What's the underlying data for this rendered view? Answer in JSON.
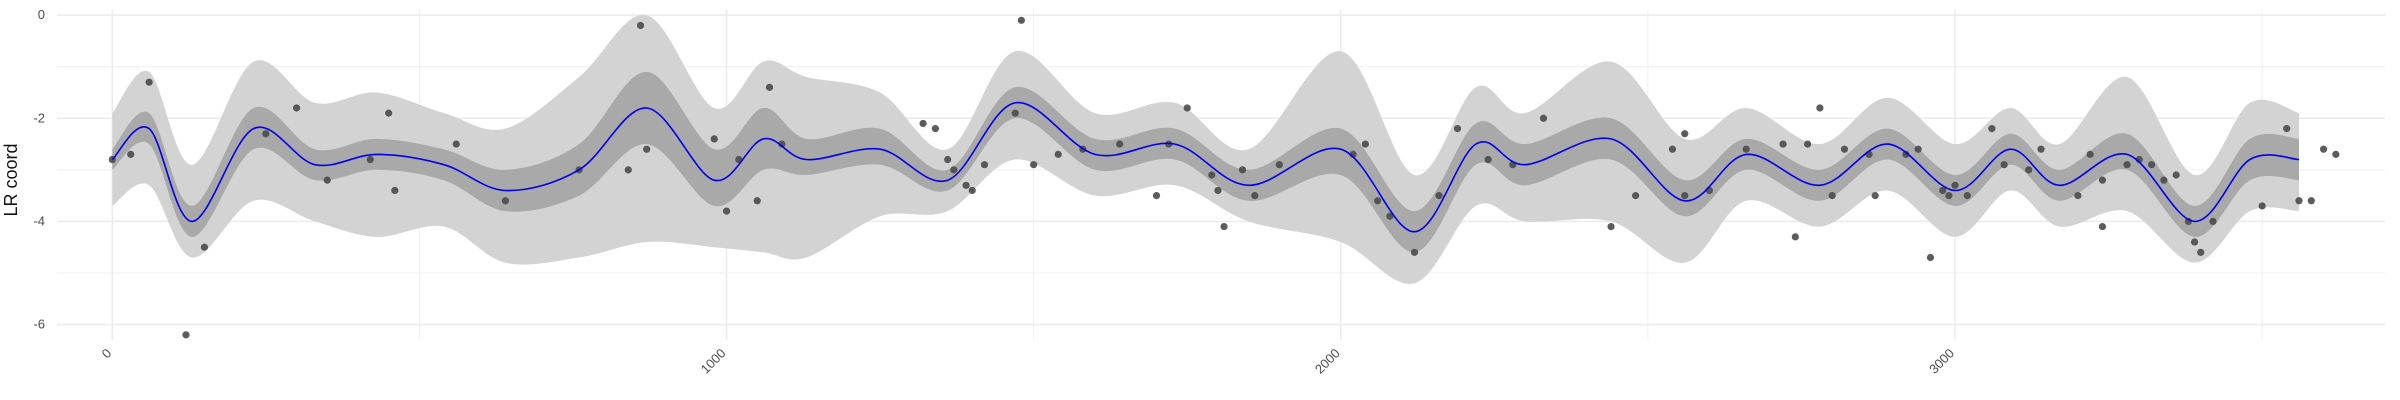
{
  "chart_data": {
    "type": "line",
    "title": "",
    "xlabel": "",
    "ylabel": "LR coord",
    "xlim": [
      -90,
      3700
    ],
    "ylim": [
      -6.3,
      0.1
    ],
    "x_ticks": [
      0,
      1000,
      2000,
      3000
    ],
    "y_ticks": [
      0,
      -2,
      -4,
      -6
    ],
    "x_minor_ticks": [
      500,
      1500,
      2500,
      3500
    ],
    "y_minor_ticks": [
      -1,
      -3,
      -5
    ],
    "grid": true,
    "legend": "none",
    "colors": {
      "mean_line": "#0000ee",
      "inner_band": "#a9a9a9",
      "outer_band": "#d3d3d3",
      "points": "#4a4a4a",
      "grid": "#ebebeb"
    },
    "bands": {
      "x": [
        0,
        60,
        130,
        230,
        330,
        430,
        540,
        640,
        760,
        870,
        980,
        1060,
        1130,
        1250,
        1360,
        1470,
        1600,
        1730,
        1850,
        2000,
        2120,
        2220,
        2300,
        2440,
        2560,
        2660,
        2780,
        2890,
        3000,
        3090,
        3170,
        3280,
        3390,
        3480,
        3560
      ],
      "mean": [
        -2.8,
        -2.2,
        -4.0,
        -2.2,
        -2.9,
        -2.7,
        -2.9,
        -3.4,
        -3.0,
        -1.8,
        -3.2,
        -2.4,
        -2.8,
        -2.6,
        -3.2,
        -1.7,
        -2.7,
        -2.5,
        -3.3,
        -2.6,
        -4.2,
        -2.5,
        -2.9,
        -2.4,
        -3.6,
        -2.7,
        -3.3,
        -2.5,
        -3.4,
        -2.6,
        -3.3,
        -2.7,
        -4.0,
        -2.8,
        -2.8
      ],
      "inner_lo": [
        -3.0,
        -2.5,
        -4.3,
        -2.6,
        -3.2,
        -3.0,
        -3.2,
        -3.8,
        -3.5,
        -2.5,
        -3.7,
        -3.0,
        -3.1,
        -2.9,
        -3.4,
        -2.0,
        -3.0,
        -2.8,
        -3.6,
        -3.1,
        -4.6,
        -2.9,
        -3.3,
        -2.8,
        -3.9,
        -3.0,
        -3.6,
        -2.8,
        -3.7,
        -2.9,
        -3.6,
        -3.0,
        -4.3,
        -3.2,
        -3.2
      ],
      "inner_hi": [
        -2.6,
        -1.9,
        -3.7,
        -1.8,
        -2.6,
        -2.4,
        -2.6,
        -3.0,
        -2.5,
        -1.1,
        -2.6,
        -1.8,
        -2.4,
        -2.2,
        -3.0,
        -1.4,
        -2.4,
        -2.2,
        -3.0,
        -2.2,
        -3.8,
        -2.1,
        -2.5,
        -2.0,
        -3.2,
        -2.4,
        -3.0,
        -2.2,
        -3.1,
        -2.3,
        -3.0,
        -2.3,
        -3.7,
        -2.4,
        -2.4
      ],
      "outer_lo": [
        -3.7,
        -3.3,
        -4.7,
        -3.6,
        -4.0,
        -4.3,
        -4.1,
        -4.8,
        -4.7,
        -4.4,
        -4.5,
        -4.6,
        -4.7,
        -3.9,
        -3.8,
        -2.8,
        -3.5,
        -3.3,
        -4.0,
        -4.4,
        -5.2,
        -3.7,
        -4.0,
        -4.0,
        -4.8,
        -3.6,
        -4.1,
        -3.4,
        -4.3,
        -3.4,
        -4.1,
        -3.8,
        -4.8,
        -3.8,
        -3.8
      ],
      "outer_hi": [
        -1.9,
        -1.1,
        -2.9,
        -0.9,
        -1.7,
        -1.5,
        -1.9,
        -2.2,
        -1.2,
        0.0,
        -1.8,
        -0.9,
        -1.2,
        -1.5,
        -2.6,
        -0.7,
        -1.9,
        -1.7,
        -2.6,
        -0.7,
        -3.1,
        -1.4,
        -1.9,
        -0.9,
        -2.4,
        -1.8,
        -2.5,
        -1.6,
        -2.5,
        -1.8,
        -2.5,
        -1.2,
        -3.1,
        -1.7,
        -1.9
      ]
    },
    "points": [
      [
        0,
        -2.8
      ],
      [
        30,
        -2.7
      ],
      [
        60,
        -1.3
      ],
      [
        120,
        -6.2
      ],
      [
        150,
        -4.5
      ],
      [
        250,
        -2.3
      ],
      [
        300,
        -1.8
      ],
      [
        350,
        -3.2
      ],
      [
        420,
        -2.8
      ],
      [
        450,
        -1.9
      ],
      [
        460,
        -3.4
      ],
      [
        560,
        -2.5
      ],
      [
        640,
        -3.6
      ],
      [
        760,
        -3.0
      ],
      [
        840,
        -3.0
      ],
      [
        860,
        -0.2
      ],
      [
        870,
        -2.6
      ],
      [
        980,
        -2.4
      ],
      [
        1000,
        -3.8
      ],
      [
        1020,
        -2.8
      ],
      [
        1050,
        -3.6
      ],
      [
        1070,
        -1.4
      ],
      [
        1090,
        -2.5
      ],
      [
        1320,
        -2.1
      ],
      [
        1340,
        -2.2
      ],
      [
        1360,
        -2.8
      ],
      [
        1370,
        -3.0
      ],
      [
        1390,
        -3.3
      ],
      [
        1420,
        -2.9
      ],
      [
        1400,
        -3.4
      ],
      [
        1470,
        -1.9
      ],
      [
        1480,
        -0.1
      ],
      [
        1500,
        -2.9
      ],
      [
        1540,
        -2.7
      ],
      [
        1580,
        -2.6
      ],
      [
        1640,
        -2.5
      ],
      [
        1700,
        -3.5
      ],
      [
        1720,
        -2.5
      ],
      [
        1750,
        -1.8
      ],
      [
        1790,
        -3.1
      ],
      [
        1800,
        -3.4
      ],
      [
        1810,
        -4.1
      ],
      [
        1840,
        -3.0
      ],
      [
        1860,
        -3.5
      ],
      [
        1900,
        -2.9
      ],
      [
        2020,
        -2.7
      ],
      [
        2040,
        -2.5
      ],
      [
        2060,
        -3.6
      ],
      [
        2080,
        -3.9
      ],
      [
        2120,
        -4.6
      ],
      [
        2160,
        -3.5
      ],
      [
        2190,
        -2.2
      ],
      [
        2240,
        -2.8
      ],
      [
        2280,
        -2.9
      ],
      [
        2330,
        -2.0
      ],
      [
        2440,
        -4.1
      ],
      [
        2480,
        -3.5
      ],
      [
        2540,
        -2.6
      ],
      [
        2560,
        -2.3
      ],
      [
        2560,
        -3.5
      ],
      [
        2600,
        -3.4
      ],
      [
        2660,
        -2.6
      ],
      [
        2720,
        -2.5
      ],
      [
        2740,
        -4.3
      ],
      [
        2760,
        -2.5
      ],
      [
        2780,
        -1.8
      ],
      [
        2800,
        -3.5
      ],
      [
        2820,
        -2.6
      ],
      [
        2860,
        -2.7
      ],
      [
        2870,
        -3.5
      ],
      [
        2920,
        -2.7
      ],
      [
        2940,
        -2.6
      ],
      [
        2960,
        -4.7
      ],
      [
        2980,
        -3.4
      ],
      [
        2990,
        -3.5
      ],
      [
        3000,
        -3.3
      ],
      [
        3020,
        -3.5
      ],
      [
        3060,
        -2.2
      ],
      [
        3080,
        -2.9
      ],
      [
        3120,
        -3.0
      ],
      [
        3140,
        -2.6
      ],
      [
        3200,
        -3.5
      ],
      [
        3220,
        -2.7
      ],
      [
        3240,
        -4.1
      ],
      [
        3240,
        -3.2
      ],
      [
        3280,
        -2.9
      ],
      [
        3300,
        -2.8
      ],
      [
        3320,
        -2.9
      ],
      [
        3340,
        -3.2
      ],
      [
        3360,
        -3.1
      ],
      [
        3380,
        -4.0
      ],
      [
        3390,
        -4.4
      ],
      [
        3400,
        -4.6
      ],
      [
        3420,
        -4.0
      ],
      [
        3500,
        -3.7
      ],
      [
        3540,
        -2.2
      ],
      [
        3560,
        -3.6
      ],
      [
        3580,
        -3.6
      ],
      [
        3600,
        -2.6
      ],
      [
        3620,
        -2.7
      ]
    ]
  }
}
